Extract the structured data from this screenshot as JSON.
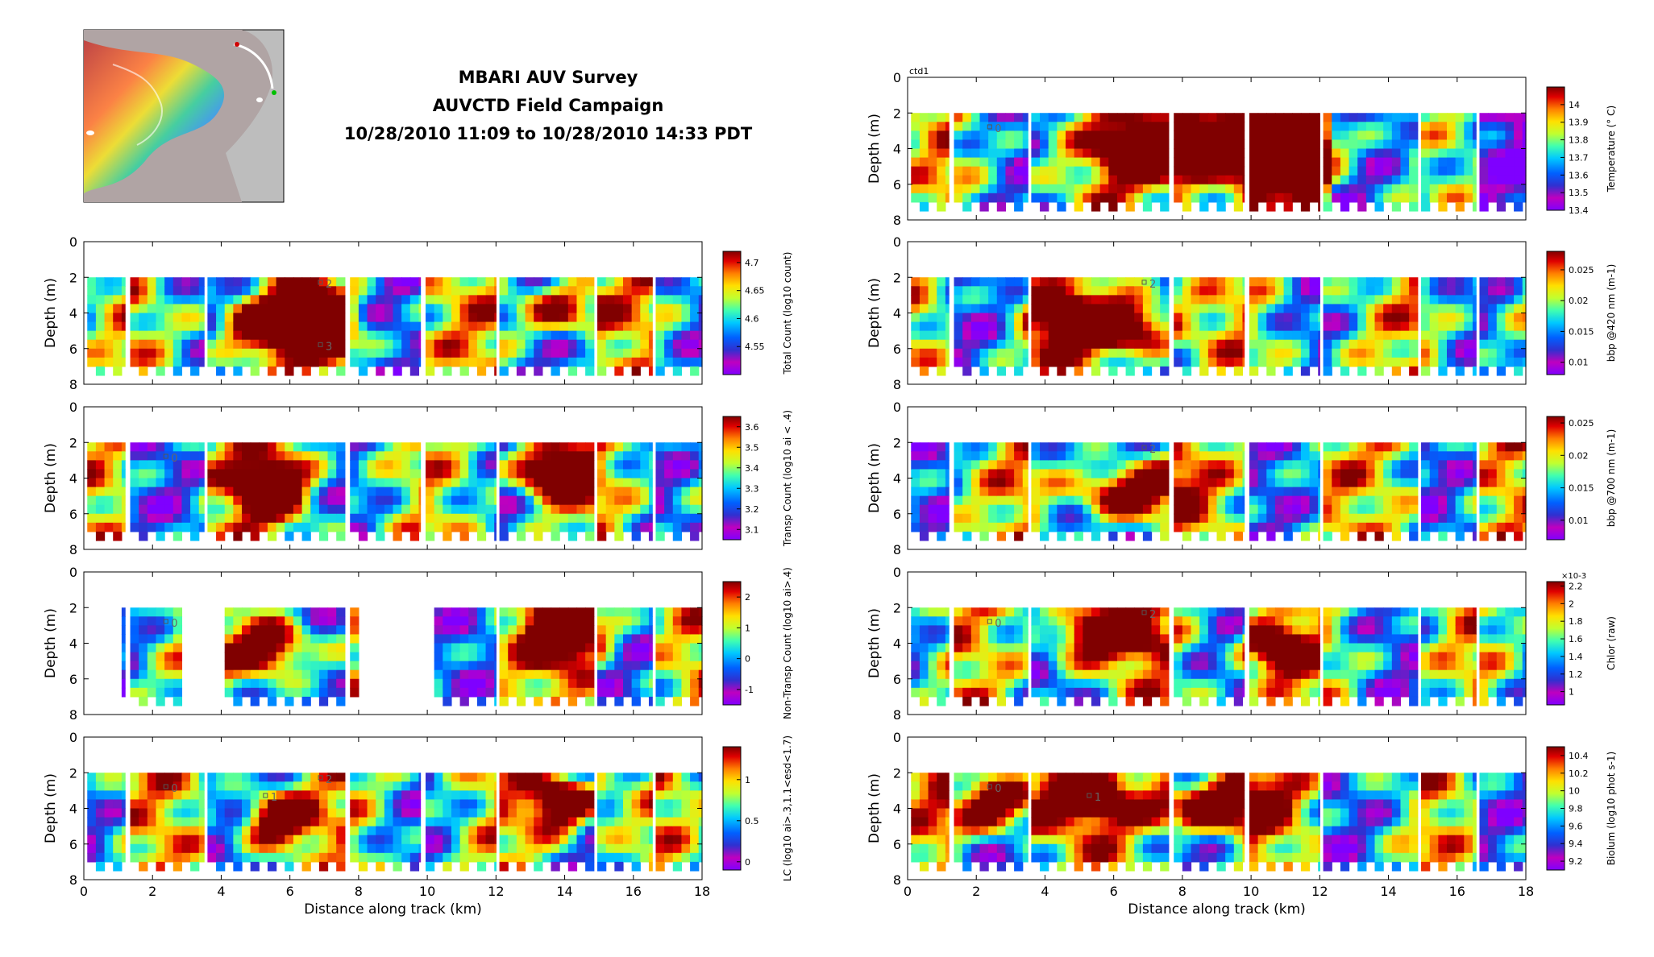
{
  "header": {
    "title_line1": "MBARI AUV Survey",
    "title_line2": "AUVCTD Field Campaign",
    "title_line3": "10/28/2010 11:09 to 10/28/2010 14:33 PDT"
  },
  "colors": {
    "frame": "#000000",
    "jet": [
      "#7f00ff",
      "#bf00bf",
      "#3030d0",
      "#0060ff",
      "#00c8ff",
      "#40ffb0",
      "#c0ff30",
      "#ffe000",
      "#ff8000",
      "#e00000",
      "#800000"
    ]
  },
  "chart_data": [
    {
      "type": "heatmap",
      "xlabel": "",
      "ylabel": "Depth (m)",
      "ylim": [
        0,
        8
      ],
      "xlim": [
        0,
        18
      ],
      "xticks": [],
      "yticks": [
        "0",
        "2",
        "4",
        "6",
        "8"
      ],
      "colorbar": {
        "label": "Total Count (log10 count)",
        "ticks": [
          "4.7",
          "4.65",
          "4.6",
          "4.55"
        ],
        "range": [
          4.5,
          4.72
        ]
      },
      "markers": [
        "2",
        "3"
      ],
      "segments_km": [
        [
          0.2,
          1.1
        ],
        [
          1.3,
          3.5
        ],
        [
          3.6,
          7.6
        ],
        [
          7.8,
          9.8
        ],
        [
          10.0,
          12.0
        ],
        [
          12.2,
          14.8
        ],
        [
          14.9,
          16.5
        ],
        [
          16.7,
          18.0
        ]
      ]
    },
    {
      "type": "heatmap",
      "xlabel": "",
      "ylabel": "Depth (m)",
      "ylim": [
        0,
        8
      ],
      "xlim": [
        0,
        18
      ],
      "xticks": [],
      "yticks": [
        "0",
        "2",
        "4",
        "6",
        "8"
      ],
      "colorbar": {
        "label": "Transp Count (log10 ai < .4)",
        "ticks": [
          "3.6",
          "3.5",
          "3.4",
          "3.3",
          "3.2",
          "3.1"
        ],
        "range": [
          3.05,
          3.65
        ]
      },
      "markers": [
        "0"
      ]
    },
    {
      "type": "heatmap",
      "xlabel": "",
      "ylabel": "Depth (m)",
      "ylim": [
        0,
        8
      ],
      "xlim": [
        0,
        18
      ],
      "xticks": [],
      "yticks": [
        "0",
        "2",
        "4",
        "6",
        "8"
      ],
      "colorbar": {
        "label": "Non-Transp Count (log10 ai>.4)",
        "ticks": [
          "2",
          "1",
          "0",
          "-1"
        ],
        "range": [
          -1.5,
          2.5
        ]
      },
      "markers": [
        "0"
      ]
    },
    {
      "type": "heatmap",
      "xlabel": "Distance along track (km)",
      "ylabel": "Depth (m)",
      "ylim": [
        0,
        8
      ],
      "xlim": [
        0,
        18
      ],
      "xticks": [
        "0",
        "2",
        "4",
        "6",
        "8",
        "10",
        "12",
        "14",
        "16",
        "18"
      ],
      "yticks": [
        "0",
        "2",
        "4",
        "6",
        "8"
      ],
      "colorbar": {
        "label": "LC (log10 ai>.3,1.1<esd<1.7)",
        "ticks": [
          "1",
          "0.5",
          "0"
        ],
        "range": [
          -0.1,
          1.4
        ]
      },
      "markers": [
        "0",
        "1",
        "2"
      ]
    },
    {
      "type": "heatmap",
      "title": "ctd1",
      "xlabel": "",
      "ylabel": "Depth (m)",
      "ylim": [
        0,
        8
      ],
      "xlim": [
        0,
        18
      ],
      "xticks": [],
      "yticks": [
        "0",
        "2",
        "4",
        "6",
        "8"
      ],
      "colorbar": {
        "label": "Temperature (° C)",
        "ticks": [
          "14",
          "13.9",
          "13.8",
          "13.7",
          "13.6",
          "13.5",
          "13.4"
        ],
        "range": [
          13.4,
          14.1
        ]
      },
      "markers": [
        "0"
      ]
    },
    {
      "type": "heatmap",
      "xlabel": "",
      "ylabel": "Depth (m)",
      "ylim": [
        0,
        8
      ],
      "xlim": [
        0,
        18
      ],
      "xticks": [],
      "yticks": [
        "0",
        "2",
        "4",
        "6",
        "8"
      ],
      "colorbar": {
        "label": "bbp @420 nm (m-1)",
        "ticks": [
          "0.025",
          "0.02",
          "0.015",
          "0.01"
        ],
        "range": [
          0.008,
          0.028
        ]
      },
      "markers": [
        "2"
      ]
    },
    {
      "type": "heatmap",
      "xlabel": "",
      "ylabel": "Depth (m)",
      "ylim": [
        0,
        8
      ],
      "xlim": [
        0,
        18
      ],
      "xticks": [],
      "yticks": [
        "0",
        "2",
        "4",
        "6",
        "8"
      ],
      "colorbar": {
        "label": "bbp @700 nm (m-1)",
        "ticks": [
          "0.025",
          "0.02",
          "0.015",
          "0.01"
        ],
        "range": [
          0.007,
          0.026
        ]
      },
      "markers": [
        "2"
      ]
    },
    {
      "type": "heatmap",
      "xlabel": "",
      "ylabel": "Depth (m)",
      "ylim": [
        0,
        8
      ],
      "xlim": [
        0,
        18
      ],
      "xticks": [],
      "yticks": [
        "0",
        "2",
        "4",
        "6",
        "8"
      ],
      "colorbar": {
        "label": "Chlor (raw)",
        "exponent": "×10-3",
        "ticks": [
          "2.2",
          "2",
          "1.8",
          "1.6",
          "1.4",
          "1.2",
          "1"
        ],
        "range": [
          0.85,
          2.25
        ]
      },
      "markers": [
        "0",
        "2"
      ]
    },
    {
      "type": "heatmap",
      "xlabel": "Distance along track (km)",
      "ylabel": "Depth (m)",
      "ylim": [
        0,
        8
      ],
      "xlim": [
        0,
        18
      ],
      "xticks": [
        "0",
        "2",
        "4",
        "6",
        "8",
        "10",
        "12",
        "14",
        "16",
        "18"
      ],
      "yticks": [
        "0",
        "2",
        "4",
        "6",
        "8"
      ],
      "colorbar": {
        "label": "Biolum (log10 phot s-1)",
        "ticks": [
          "10.4",
          "10.2",
          "10",
          "9.8",
          "9.6",
          "9.4",
          "9.2"
        ],
        "range": [
          9.1,
          10.5
        ]
      },
      "markers": [
        "0",
        "1"
      ]
    }
  ]
}
